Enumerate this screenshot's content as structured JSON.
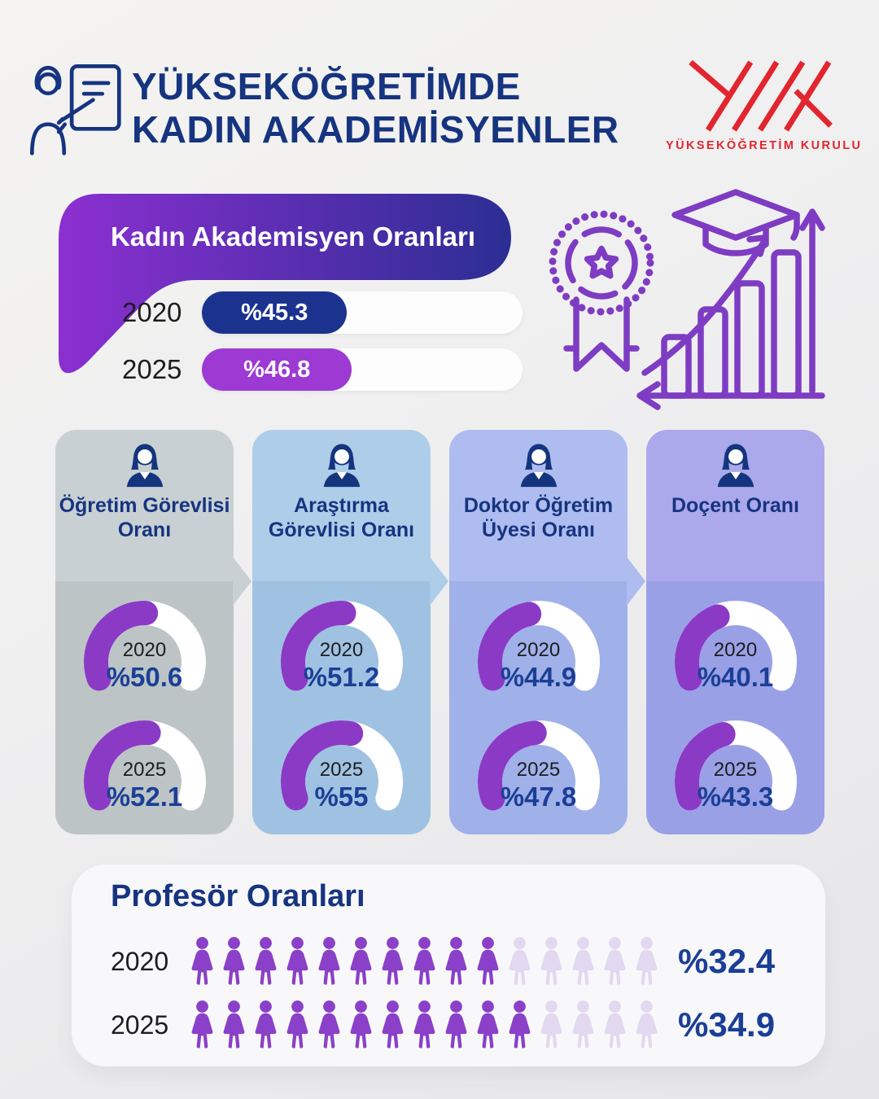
{
  "header": {
    "title_line1": "YÜKSEKÖĞRETİMDE",
    "title_line2": "KADIN AKADEMİSYENLER",
    "logo_caption": "YÜKSEKÖĞRETİM KURULU",
    "teacher_icon": "woman-presenting-at-board-icon",
    "logo_icon": "yok-monogram-icon"
  },
  "overall": {
    "title": "Kadın Akademisyen Oranları",
    "rows": [
      {
        "year": "2020",
        "label": "%45.3",
        "value": 45.3,
        "color": "#1b338f"
      },
      {
        "year": "2025",
        "label": "%46.8",
        "value": 46.8,
        "color": "#9c3ad3"
      }
    ]
  },
  "cards": [
    {
      "title": "Öğretim Görevlisi Oranı",
      "icon": "woman-academic-icon",
      "header_color": "#c8d0d3",
      "body_color": "#bcc4c6",
      "gauges": [
        {
          "year": "2020",
          "label": "%50.6",
          "value": 50.6
        },
        {
          "year": "2025",
          "label": "%52.1",
          "value": 52.1
        }
      ]
    },
    {
      "title": "Araştırma Görevlisi Oranı",
      "icon": "woman-academic-icon",
      "header_color": "#aecde9",
      "body_color": "#a0c2e2",
      "gauges": [
        {
          "year": "2020",
          "label": "%51.2",
          "value": 51.2
        },
        {
          "year": "2025",
          "label": "%55",
          "value": 55
        }
      ]
    },
    {
      "title": "Doktor Öğretim Üyesi Oranı",
      "icon": "woman-academic-icon",
      "header_color": "#aebcf0",
      "body_color": "#a0b0e9",
      "gauges": [
        {
          "year": "2020",
          "label": "%44.9",
          "value": 44.9
        },
        {
          "year": "2025",
          "label": "%47.8",
          "value": 47.8
        }
      ]
    },
    {
      "title": "Doçent Oranı",
      "icon": "woman-academic-icon",
      "header_color": "#aba8ec",
      "body_color": "#9aa0e6",
      "gauges": [
        {
          "year": "2020",
          "label": "%40.1",
          "value": 40.1
        },
        {
          "year": "2025",
          "label": "%43.3",
          "value": 43.3
        }
      ]
    }
  ],
  "professors": {
    "title": "Profesör Oranları",
    "rows": [
      {
        "year": "2020",
        "label": "%32.4",
        "value": 32.4,
        "filled": 10,
        "total": 15
      },
      {
        "year": "2025",
        "label": "%34.9",
        "value": 34.9,
        "filled": 11,
        "total": 15
      }
    ]
  },
  "colors": {
    "navy": "#16347f",
    "pct_navy": "#1b3f96",
    "red": "#e2252e",
    "gauge_purple": "#8b3ac6",
    "picto_fill": "#8a40c8",
    "picto_faded": "#e2d8f0",
    "banner_from": "#8c2fd1",
    "banner_to": "#2b2e93"
  },
  "chart_data": [
    {
      "type": "bar",
      "title": "Kadın Akademisyen Oranları",
      "categories": [
        "2020",
        "2025"
      ],
      "values": [
        45.3,
        46.8
      ],
      "xlabel": "",
      "ylabel": "%",
      "ylim": [
        0,
        100
      ]
    },
    {
      "type": "pie",
      "title": "Öğretim Görevlisi Oranı",
      "categories": [
        "2020",
        "2025"
      ],
      "values": [
        50.6,
        52.1
      ],
      "ylim": [
        0,
        100
      ]
    },
    {
      "type": "pie",
      "title": "Araştırma Görevlisi Oranı",
      "categories": [
        "2020",
        "2025"
      ],
      "values": [
        51.2,
        55
      ],
      "ylim": [
        0,
        100
      ]
    },
    {
      "type": "pie",
      "title": "Doktor Öğretim Üyesi Oranı",
      "categories": [
        "2020",
        "2025"
      ],
      "values": [
        44.9,
        47.8
      ],
      "ylim": [
        0,
        100
      ]
    },
    {
      "type": "pie",
      "title": "Doçent Oranı",
      "categories": [
        "2020",
        "2025"
      ],
      "values": [
        40.1,
        43.3
      ],
      "ylim": [
        0,
        100
      ]
    },
    {
      "type": "bar",
      "title": "Profesör Oranları",
      "categories": [
        "2020",
        "2025"
      ],
      "values": [
        32.4,
        34.9
      ],
      "xlabel": "",
      "ylabel": "%",
      "ylim": [
        0,
        100
      ]
    }
  ]
}
